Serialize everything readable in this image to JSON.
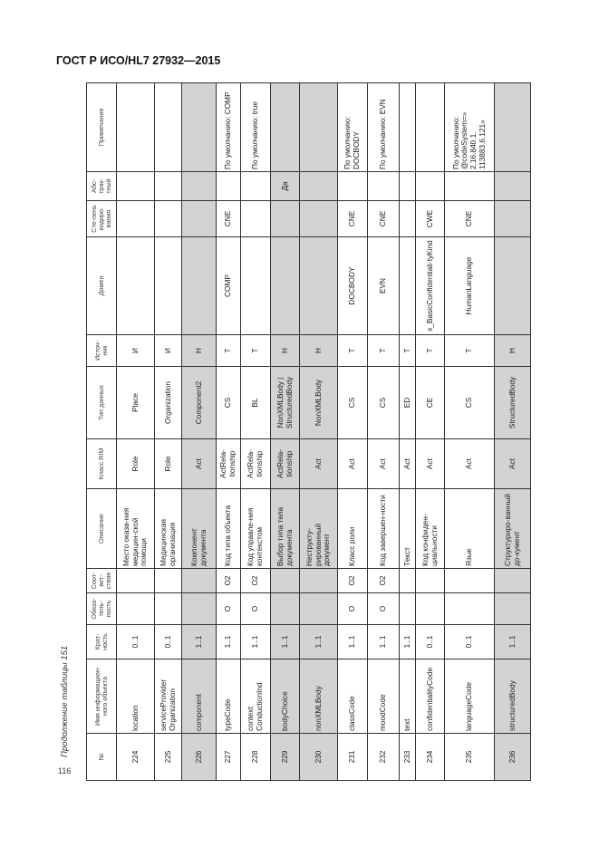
{
  "header": {
    "title": "ГОСТ Р ИСО/HL7 27932—2015"
  },
  "page_number": "116",
  "caption": "Продолжение таблицы 151",
  "table": {
    "columns": [
      "№",
      "Имя информацион-ного объекта",
      "Крат-ность",
      "Обяза-тель-ность",
      "Соот-вет-ствие",
      "Описание",
      "Класс RIM",
      "Тип данных",
      "Источ-ник",
      "Домен",
      "Сте-пень кодиро-вания",
      "Абс-трак-тный",
      "Примечания"
    ],
    "rows": [
      {
        "grey": false,
        "cells": [
          "224",
          "location",
          "0..1",
          "",
          "",
          "Место оказа-ния медицин-ской помощи",
          "Role",
          "Place",
          "И",
          "",
          "",
          "",
          ""
        ]
      },
      {
        "grey": false,
        "cells": [
          "225",
          "serviceProvider Organization",
          "0..1",
          "",
          "",
          "Медицинская организация",
          "Role",
          "Organization",
          "И",
          "",
          "",
          "",
          ""
        ]
      },
      {
        "grey": true,
        "cells": [
          "226",
          "component",
          "1..1",
          "",
          "",
          "Компонент документа",
          "Act",
          "Component2",
          "Н",
          "",
          "",
          "",
          ""
        ]
      },
      {
        "grey": false,
        "cells": [
          "227",
          "typeCode",
          "1..1",
          "O",
          "O2",
          "Код типа объекта",
          "ActRela-tionship",
          "CS",
          "Т",
          "COMP",
          "CNE",
          "",
          "По умолчанию: COMP"
        ]
      },
      {
        "grey": false,
        "cells": [
          "228",
          "context ConductionInd",
          "1..1",
          "O",
          "O2",
          "Код управле-ния контекстом",
          "ActRela-tionship",
          "BL",
          "Т",
          "",
          "",
          "",
          "По умолчанию: true"
        ]
      },
      {
        "grey": true,
        "cells": [
          "229",
          "bodyChoice",
          "1..1",
          "",
          "",
          "Выбор типа тела документа",
          "ActRela-tionship",
          "NonXMLBody | StructuredBody",
          "Н",
          "",
          "",
          "Да",
          ""
        ]
      },
      {
        "grey": true,
        "cells": [
          "230",
          "nonXMLBody",
          "1..1",
          "",
          "",
          "Неструкту-рированный документ",
          "Act",
          "NonXMLBody",
          "Н",
          "",
          "",
          "",
          ""
        ]
      },
      {
        "grey": false,
        "cells": [
          "231",
          "classCode",
          "1..1",
          "O",
          "O2",
          "Класс роли",
          "Act",
          "CS",
          "Т",
          "DOCBODY",
          "CNE",
          "",
          "По умолчанию: DOCBODY"
        ]
      },
      {
        "grey": false,
        "cells": [
          "232",
          "moodCode",
          "1..1",
          "O",
          "O2",
          "Код завершен-ности",
          "Act",
          "CS",
          "Т",
          "EVN",
          "CNE",
          "",
          "По умолчанию: EVN"
        ]
      },
      {
        "grey": false,
        "cells": [
          "233",
          "text",
          "1..1",
          "",
          "",
          "Текст",
          "Act",
          "ED",
          "Т",
          "",
          "",
          "",
          ""
        ]
      },
      {
        "grey": false,
        "cells": [
          "234",
          "confidentialityCode",
          "0..1",
          "",
          "",
          "Код конфиден-циальности",
          "Act",
          "CE",
          "Т",
          "x_BasicConfidentiali-tyKind",
          "CWE",
          "",
          ""
        ]
      },
      {
        "grey": false,
        "cells": [
          "235",
          "languageCode",
          "0..1",
          "",
          "",
          "Язык",
          "Act",
          "CS",
          "Т",
          "HumanLanguage",
          "CNE",
          "",
          "По умолчанию: @codeSystem=» 2.16.840.1. 113883.6.121»"
        ]
      },
      {
        "grey": true,
        "cells": [
          "236",
          "structuredBody",
          "1..1",
          "",
          "",
          "Структуриро-ванный до-кумент",
          "Act",
          "StructuredBody",
          "Н",
          "",
          "",
          "",
          ""
        ]
      }
    ],
    "colors": {
      "grey_row": "#d3d3d3",
      "border": "#333333"
    }
  }
}
